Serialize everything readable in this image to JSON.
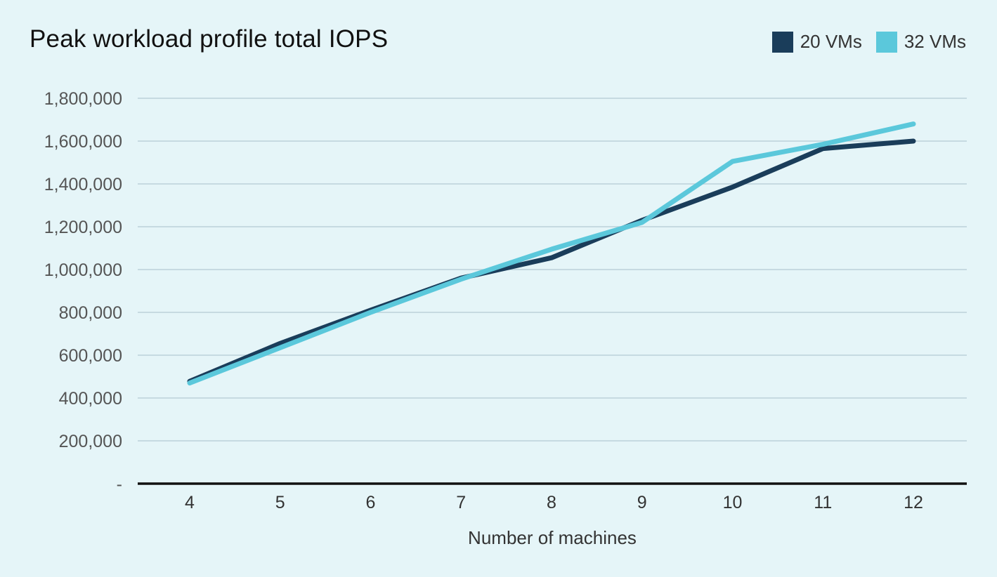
{
  "chart_data": {
    "type": "line",
    "title": "Peak workload profile total IOPS",
    "xlabel": "Number of machines",
    "ylabel": "",
    "categories": [
      "4",
      "5",
      "6",
      "7",
      "8",
      "9",
      "10",
      "11",
      "12"
    ],
    "ylim": [
      0,
      1800000
    ],
    "yticks": [
      0,
      200000,
      400000,
      600000,
      800000,
      1000000,
      1200000,
      1400000,
      1600000,
      1800000
    ],
    "ytick_labels": [
      "-",
      "200,000",
      "400,000",
      "600,000",
      "800,000",
      "1,000,000",
      "1,200,000",
      "1,400,000",
      "1,600,000",
      "1,800,000"
    ],
    "grid": true,
    "legend_position": "top-right",
    "series": [
      {
        "name": "20 VMs",
        "color": "#1a3d5a",
        "values": [
          478000,
          655000,
          810000,
          960000,
          1055000,
          1230000,
          1385000,
          1565000,
          1600000
        ]
      },
      {
        "name": "32 VMs",
        "color": "#5bc8db",
        "values": [
          470000,
          635000,
          800000,
          955000,
          1095000,
          1220000,
          1505000,
          1585000,
          1680000
        ]
      }
    ]
  },
  "colors": {
    "background": "#e5f5f8",
    "gridline": "#bcd2d9",
    "baseline": "#111111"
  }
}
